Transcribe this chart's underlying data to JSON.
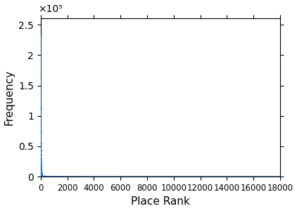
{
  "title": "",
  "xlabel": "Place Rank",
  "ylabel": "Frequency",
  "xlim": [
    0,
    18000
  ],
  "ylim": [
    0,
    260000
  ],
  "x_ticks": [
    0,
    2000,
    4000,
    6000,
    8000,
    10000,
    12000,
    14000,
    16000,
    18000
  ],
  "y_ticks": [
    0,
    50000,
    100000,
    150000,
    200000,
    250000
  ],
  "y_tick_labels": [
    "0",
    "0.5",
    "1",
    "1.5",
    "2",
    "2.5"
  ],
  "y_scale_label": "×10⁵",
  "line_color": "#1f6fbf",
  "n_points": 18000,
  "zipf_scale": 233000,
  "zipf_exponent": 1.05,
  "background_color": "#ffffff"
}
